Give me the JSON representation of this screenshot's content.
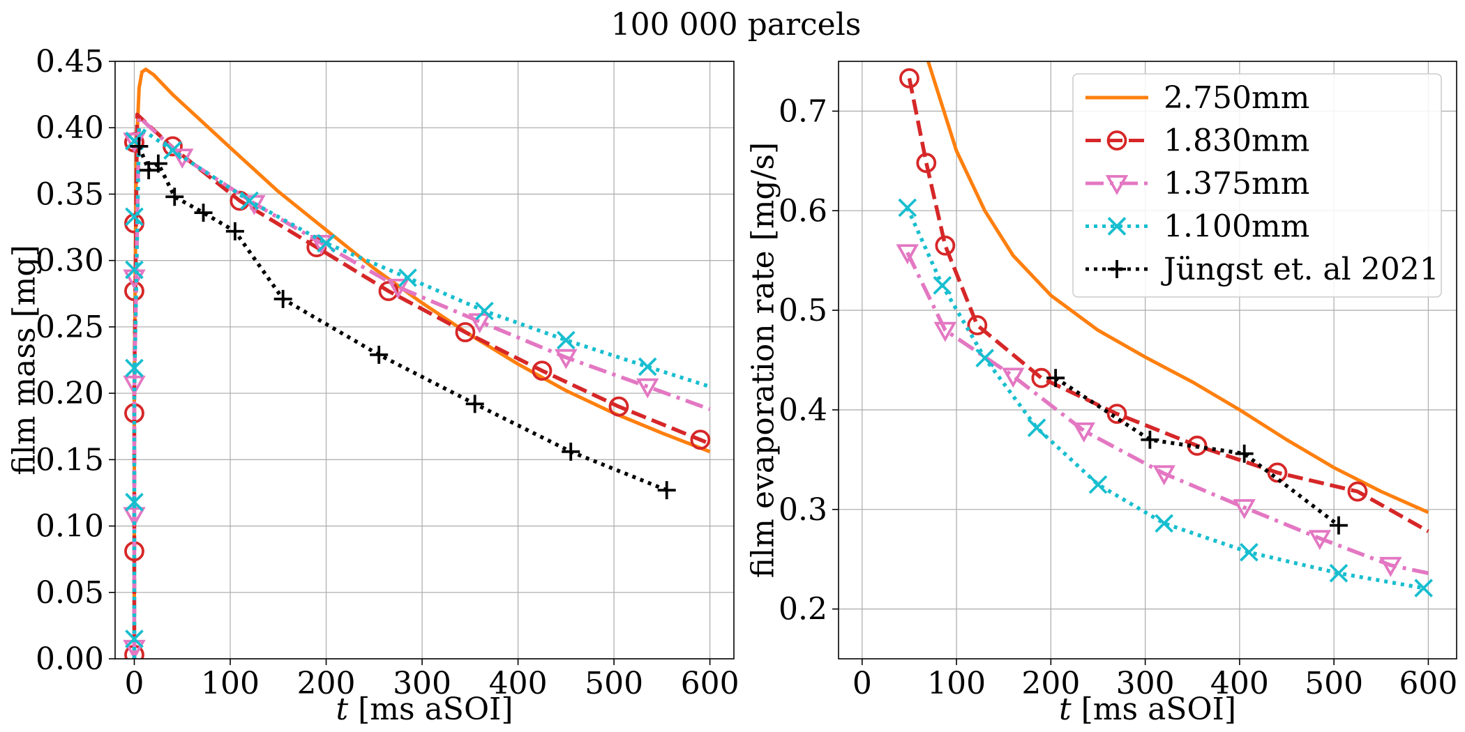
{
  "suptitle": "100 000 parcels",
  "chart_data": [
    {
      "type": "line",
      "panel": "left",
      "xlabel_italic": "t",
      "xlabel_rest": " [ms aSOI]",
      "ylabel": "film mass [mg]",
      "xlim": [
        -20,
        625
      ],
      "ylim": [
        0,
        0.45
      ],
      "xticks": [
        0,
        100,
        200,
        300,
        400,
        500,
        600
      ],
      "yticks": [
        0.0,
        0.05,
        0.1,
        0.15,
        0.2,
        0.25,
        0.3,
        0.35,
        0.4,
        0.45
      ],
      "ytick_labels": [
        "0.00",
        "0.05",
        "0.10",
        "0.15",
        "0.20",
        "0.25",
        "0.30",
        "0.35",
        "0.40",
        "0.45"
      ],
      "grid": true,
      "series": [
        {
          "name": "2.750mm",
          "color": "#ff7f0e",
          "dash": "solid",
          "marker": "none",
          "x": [
            0,
            0,
            2,
            5,
            8,
            12,
            20,
            40,
            70,
            100,
            150,
            200,
            250,
            300,
            350,
            400,
            450,
            500,
            550,
            600
          ],
          "y": [
            0.0,
            0.2,
            0.38,
            0.43,
            0.442,
            0.444,
            0.44,
            0.425,
            0.405,
            0.385,
            0.352,
            0.323,
            0.294,
            0.268,
            0.244,
            0.222,
            0.202,
            0.185,
            0.17,
            0.156
          ],
          "marker_x": [],
          "marker_y": []
        },
        {
          "name": "1.830mm",
          "color": "#d62728",
          "dash": "dashed",
          "marker": "circle",
          "x": [
            0,
            0,
            3,
            40,
            110,
            190,
            265,
            345,
            425,
            505,
            590,
            600
          ],
          "y": [
            0.0,
            0.2,
            0.41,
            0.385,
            0.345,
            0.31,
            0.277,
            0.246,
            0.217,
            0.19,
            0.165,
            0.162
          ],
          "marker_x": [
            0,
            0,
            0,
            0,
            0,
            0,
            0,
            40,
            110,
            190,
            265,
            345,
            425,
            505,
            590
          ],
          "marker_y": [
            0.003,
            0.081,
            0.185,
            0.277,
            0.328,
            0.389,
            0.389,
            0.386,
            0.345,
            0.31,
            0.277,
            0.246,
            0.217,
            0.19,
            0.165
          ]
        },
        {
          "name": "1.375mm",
          "color": "#e377c2",
          "dash": "dashdot",
          "marker": "triangle_down",
          "x": [
            0,
            0,
            5,
            50,
            125,
            195,
            275,
            360,
            450,
            535,
            600
          ],
          "y": [
            0.0,
            0.2,
            0.408,
            0.378,
            0.343,
            0.313,
            0.28,
            0.254,
            0.227,
            0.205,
            0.188
          ],
          "marker_x": [
            0,
            0,
            0,
            0,
            0,
            50,
            125,
            195,
            275,
            360,
            450,
            535
          ],
          "marker_y": [
            0.008,
            0.108,
            0.207,
            0.287,
            0.39,
            0.378,
            0.343,
            0.313,
            0.28,
            0.254,
            0.227,
            0.205
          ]
        },
        {
          "name": "1.100mm",
          "color": "#17becf",
          "dash": "dotted",
          "marker": "x",
          "x": [
            0,
            0,
            5,
            40,
            120,
            200,
            285,
            365,
            450,
            535,
            600
          ],
          "y": [
            0.0,
            0.2,
            0.4,
            0.383,
            0.345,
            0.313,
            0.287,
            0.262,
            0.24,
            0.22,
            0.205
          ],
          "marker_x": [
            0,
            0,
            0,
            0,
            0,
            0,
            0,
            40,
            120,
            200,
            285,
            365,
            450,
            535
          ],
          "marker_y": [
            0.015,
            0.118,
            0.219,
            0.293,
            0.333,
            0.39,
            0.39,
            0.383,
            0.345,
            0.313,
            0.287,
            0.262,
            0.24,
            0.22
          ]
        },
        {
          "name": "Jüngst et. al 2021",
          "color": "#000000",
          "dash": "dotted",
          "marker": "plus",
          "x": [
            5,
            15,
            25,
            42,
            72,
            105,
            155,
            255,
            355,
            455,
            555
          ],
          "y": [
            0.386,
            0.368,
            0.373,
            0.348,
            0.336,
            0.322,
            0.271,
            0.229,
            0.192,
            0.156,
            0.127
          ],
          "marker_x": [
            5,
            15,
            25,
            42,
            72,
            105,
            155,
            255,
            355,
            455,
            555
          ],
          "marker_y": [
            0.386,
            0.368,
            0.373,
            0.348,
            0.336,
            0.322,
            0.271,
            0.229,
            0.192,
            0.156,
            0.127
          ]
        }
      ]
    },
    {
      "type": "line",
      "panel": "right",
      "xlabel_italic": "t",
      "xlabel_rest": " [ms aSOI]",
      "ylabel": "film evaporation rate [mg/s]",
      "xlim": [
        -25,
        630
      ],
      "ylim": [
        0.15,
        0.75
      ],
      "xticks": [
        0,
        100,
        200,
        300,
        400,
        500,
        600
      ],
      "yticks": [
        0.2,
        0.3,
        0.4,
        0.5,
        0.6,
        0.7
      ],
      "ytick_labels": [
        "0.2",
        "0.3",
        "0.4",
        "0.5",
        "0.6",
        "0.7"
      ],
      "grid": true,
      "legend": "top-right",
      "series": [
        {
          "name": "2.750mm",
          "color": "#ff7f0e",
          "dash": "solid",
          "marker": "none",
          "x": [
            70,
            80,
            100,
            130,
            160,
            200,
            250,
            300,
            350,
            400,
            450,
            500,
            550,
            600
          ],
          "y": [
            0.75,
            0.72,
            0.66,
            0.6,
            0.555,
            0.515,
            0.48,
            0.453,
            0.428,
            0.4,
            0.37,
            0.342,
            0.318,
            0.297
          ],
          "marker_x": [],
          "marker_y": []
        },
        {
          "name": "1.830mm",
          "color": "#d62728",
          "dash": "dashed",
          "marker": "circle",
          "x": [
            50,
            68,
            88,
            122,
            190,
            270,
            355,
            440,
            525,
            600
          ],
          "y": [
            0.733,
            0.648,
            0.565,
            0.485,
            0.432,
            0.396,
            0.364,
            0.337,
            0.318,
            0.278
          ],
          "marker_x": [
            50,
            68,
            88,
            122,
            190,
            270,
            355,
            440,
            525
          ],
          "marker_y": [
            0.733,
            0.648,
            0.565,
            0.485,
            0.432,
            0.396,
            0.364,
            0.337,
            0.318
          ]
        },
        {
          "name": "1.375mm",
          "color": "#e377c2",
          "dash": "dashdot",
          "marker": "triangle_down",
          "x": [
            48,
            88,
            160,
            235,
            320,
            405,
            485,
            560,
            600
          ],
          "y": [
            0.558,
            0.48,
            0.434,
            0.379,
            0.336,
            0.302,
            0.271,
            0.244,
            0.236
          ],
          "marker_x": [
            48,
            88,
            160,
            235,
            320,
            405,
            485,
            560
          ],
          "marker_y": [
            0.558,
            0.48,
            0.434,
            0.379,
            0.336,
            0.302,
            0.271,
            0.244
          ]
        },
        {
          "name": "1.100mm",
          "color": "#17becf",
          "dash": "dotted",
          "marker": "x",
          "x": [
            48,
            85,
            130,
            185,
            250,
            320,
            410,
            505,
            595
          ],
          "y": [
            0.603,
            0.525,
            0.452,
            0.382,
            0.325,
            0.286,
            0.257,
            0.236,
            0.221
          ],
          "marker_x": [
            48,
            85,
            130,
            185,
            250,
            320,
            410,
            505,
            595
          ],
          "marker_y": [
            0.603,
            0.525,
            0.452,
            0.382,
            0.325,
            0.286,
            0.257,
            0.236,
            0.221
          ]
        },
        {
          "name": "Jüngst et. al 2021",
          "color": "#000000",
          "dash": "dotted",
          "marker": "plus",
          "x": [
            205,
            305,
            405,
            505
          ],
          "y": [
            0.432,
            0.37,
            0.356,
            0.284
          ],
          "marker_x": [
            205,
            305,
            405,
            505
          ],
          "marker_y": [
            0.432,
            0.37,
            0.356,
            0.284
          ]
        }
      ]
    }
  ]
}
